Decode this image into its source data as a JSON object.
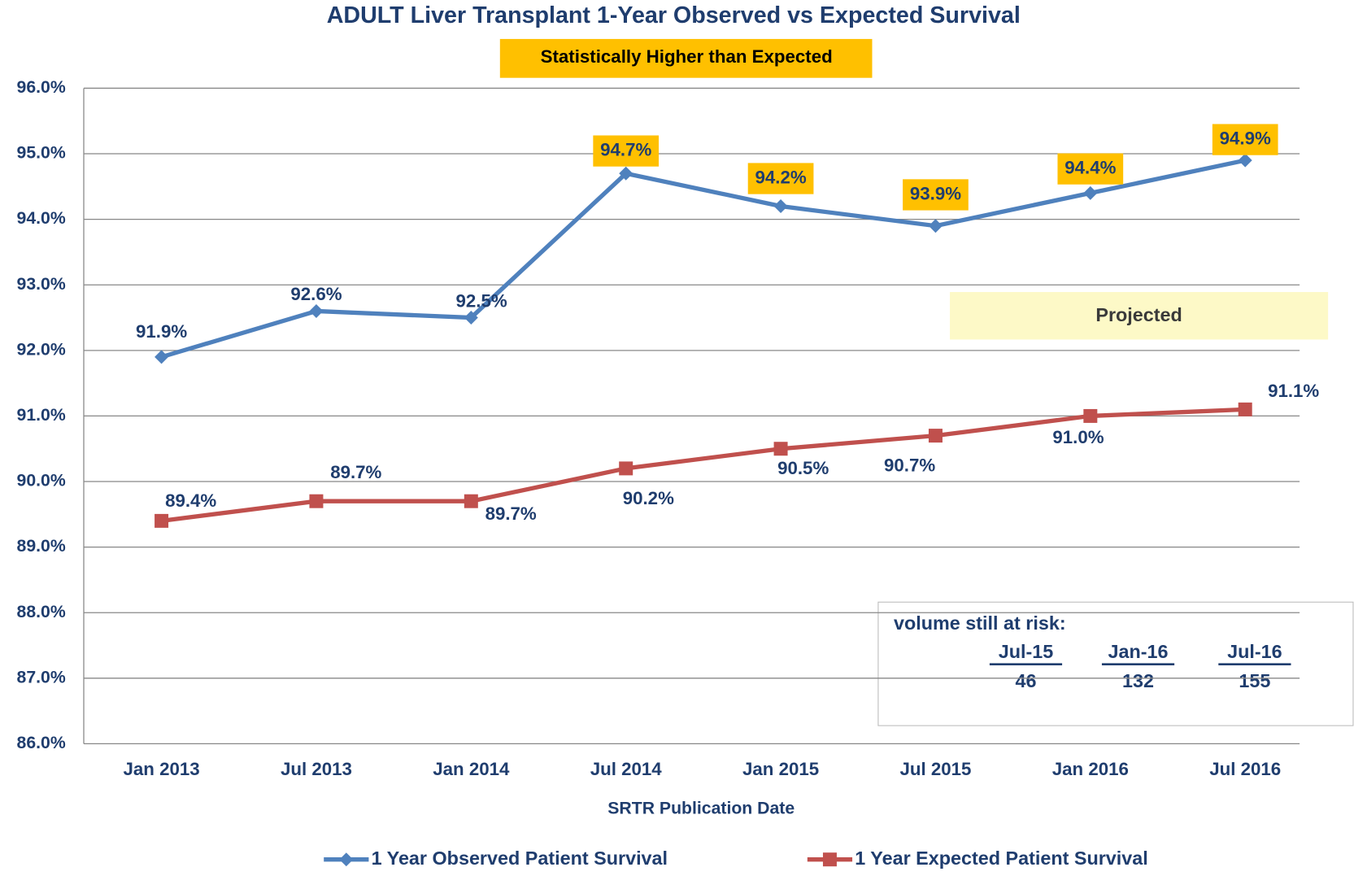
{
  "chart_data": {
    "type": "line",
    "title": "ADULT Liver Transplant 1-Year Observed vs Expected Survival",
    "x_label": "SRTR Publication Date",
    "categories": [
      "Jan 2013",
      "Jul 2013",
      "Jan 2014",
      "Jul 2014",
      "Jan 2015",
      "Jul 2015",
      "Jan 2016",
      "Jul 2016"
    ],
    "series": [
      {
        "name": "1 Year Observed Patient Survival",
        "color": "#4f81bd",
        "marker": "diamond",
        "values": [
          91.9,
          92.6,
          92.5,
          94.7,
          94.2,
          93.9,
          94.4,
          94.9
        ],
        "value_labels": [
          "91.9%",
          "92.6%",
          "92.5%",
          "94.7%",
          "94.2%",
          "93.9%",
          "94.4%",
          "94.9%"
        ],
        "label_backgrounds": [
          null,
          null,
          null,
          "#ffc000",
          "#ffc000",
          "#ffc000",
          "#ffc000",
          "#ffc000"
        ]
      },
      {
        "name": "1 Year Expected Patient Survival",
        "color": "#c0504d",
        "marker": "square",
        "values": [
          89.4,
          89.7,
          89.7,
          90.2,
          90.5,
          90.7,
          91.0,
          91.1
        ],
        "value_labels": [
          "89.4%",
          "89.7%",
          "89.7%",
          "90.2%",
          "90.5%",
          "90.7%",
          "91.0%",
          "91.1%"
        ]
      }
    ],
    "ylim": [
      86,
      96
    ],
    "yticks": [
      {
        "value": 86,
        "label": "86.0%"
      },
      {
        "value": 87,
        "label": "87.0%"
      },
      {
        "value": 88,
        "label": "88.0%"
      },
      {
        "value": 89,
        "label": "89.0%"
      },
      {
        "value": 90,
        "label": "90.0%"
      },
      {
        "value": 91,
        "label": "91.0%"
      },
      {
        "value": 92,
        "label": "92.0%"
      },
      {
        "value": 93,
        "label": "93.0%"
      },
      {
        "value": 94,
        "label": "94.0%"
      },
      {
        "value": 95,
        "label": "95.0%"
      },
      {
        "value": 96,
        "label": "96.0%"
      }
    ],
    "grid": true,
    "legend": "bottom",
    "annotations": {
      "banner": "Statistically Higher than Expected",
      "projected": "Projected",
      "risk_title": "volume still at risk:",
      "risk_headers": [
        "Jul-15",
        "Jan-16",
        "Jul-16"
      ],
      "risk_values": [
        "46",
        "132",
        "155"
      ]
    }
  }
}
